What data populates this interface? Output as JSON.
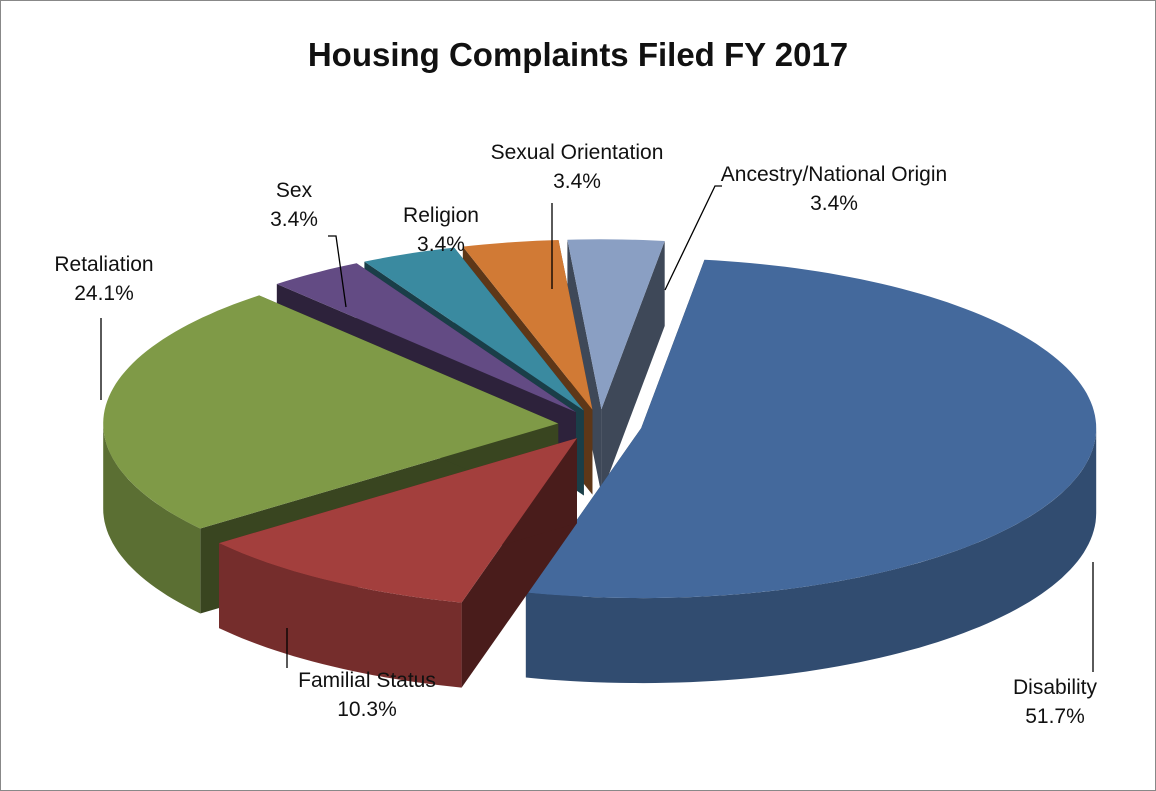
{
  "chart_data": {
    "type": "pie",
    "title": "Housing Complaints Filed FY 2017",
    "categories": [
      "Disability",
      "Familial Status",
      "Retaliation",
      "Sex",
      "Religion",
      "Sexual Orientation",
      "Ancestry/National Origin"
    ],
    "values": [
      51.7,
      10.3,
      24.1,
      3.4,
      3.4,
      3.4,
      3.4
    ],
    "value_labels": [
      "51.7%",
      "10.3%",
      "24.1%",
      "3.4%",
      "3.4%",
      "3.4%",
      "3.4%"
    ],
    "colors": [
      "#44699c",
      "#a33f3d",
      "#7f9a47",
      "#634b84",
      "#3a8aa0",
      "#d17a35",
      "#8a9fc3"
    ]
  }
}
